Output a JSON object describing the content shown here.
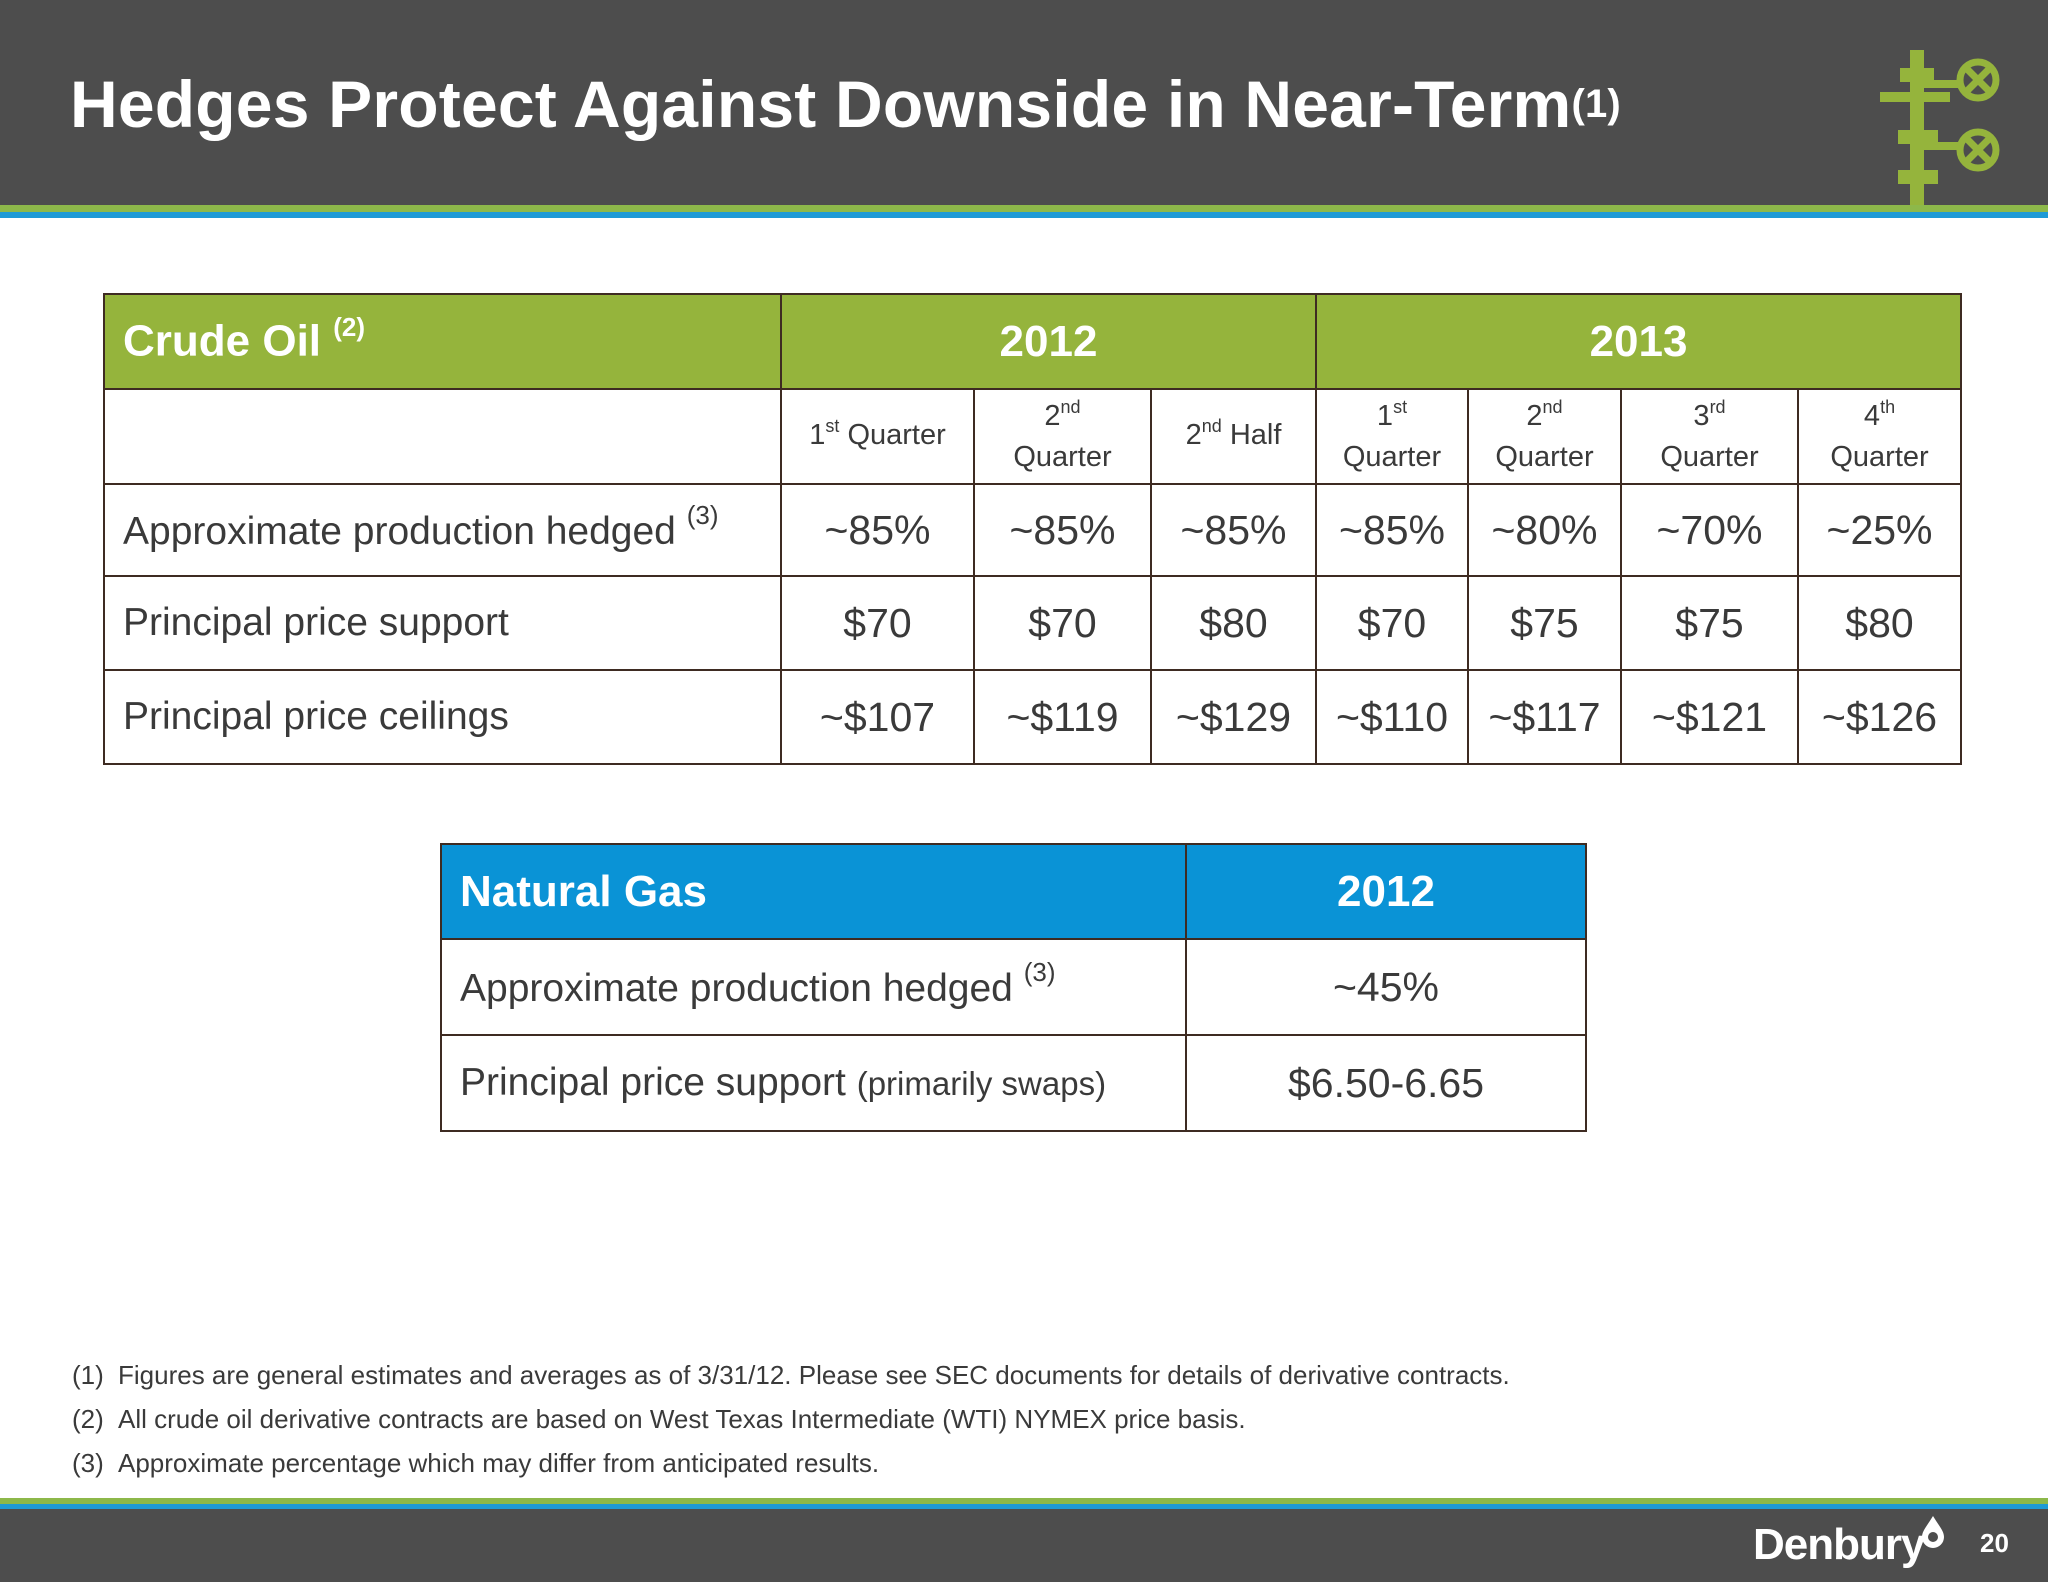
{
  "header": {
    "title": "Hedges Protect Against Downside in Near-Term",
    "title_note": "(1)",
    "logo_icon": "wellhead-valve-icon"
  },
  "crude_oil": {
    "title": "Crude Oil",
    "title_note": "(2)",
    "years": [
      "2012",
      "2013"
    ],
    "periods": [
      {
        "ord": "1",
        "suffix": "st",
        "label": "Quarter",
        "break": false
      },
      {
        "ord": "2",
        "suffix": "nd",
        "label": "Quarter",
        "break": true
      },
      {
        "ord": "2",
        "suffix": "nd",
        "label": "Half",
        "break": false
      },
      {
        "ord": "1",
        "suffix": "st",
        "label": "Quarter",
        "break": true
      },
      {
        "ord": "2",
        "suffix": "nd",
        "label": "Quarter",
        "break": true
      },
      {
        "ord": "3",
        "suffix": "rd",
        "label": "Quarter",
        "break": true
      },
      {
        "ord": "4",
        "suffix": "th",
        "label": "Quarter",
        "break": true
      }
    ],
    "rows": [
      {
        "label": "Approximate production hedged",
        "note": "(3)",
        "values": [
          "~85%",
          "~85%",
          "~85%",
          "~85%",
          "~80%",
          "~70%",
          "~25%"
        ]
      },
      {
        "label": "Principal price support",
        "note": "",
        "values": [
          "$70",
          "$70",
          "$80",
          "$70",
          "$75",
          "$75",
          "$80"
        ]
      },
      {
        "label": "Principal price ceilings",
        "note": "",
        "values": [
          "~$107",
          "~$119",
          "~$129",
          "~$110",
          "~$117",
          "~$121",
          "~$126"
        ]
      }
    ]
  },
  "natural_gas": {
    "title": "Natural Gas",
    "year": "2012",
    "rows": [
      {
        "label": "Approximate production hedged",
        "note": "(3)",
        "detail": "",
        "value": "~45%"
      },
      {
        "label": "Principal price support",
        "note": "",
        "detail": "(primarily swaps)",
        "value": "$6.50-6.65"
      }
    ]
  },
  "footnotes": [
    {
      "num": "(1)",
      "text": "Figures are general estimates and averages as of 3/31/12. Please see SEC documents for details of derivative contracts."
    },
    {
      "num": "(2)",
      "text": "All crude oil derivative contracts are based on West Texas Intermediate (WTI) NYMEX price basis."
    },
    {
      "num": "(3)",
      "text": "Approximate percentage which may differ from anticipated results."
    }
  ],
  "footer": {
    "brand": "Denbury",
    "brand_icon": "oil-drop-icon",
    "page_number": "20"
  },
  "colors": {
    "header_bg": "#4d4d4d",
    "accent_green": "#95b43c",
    "accent_blue": "#0a93d6",
    "border": "#3e2b22"
  }
}
